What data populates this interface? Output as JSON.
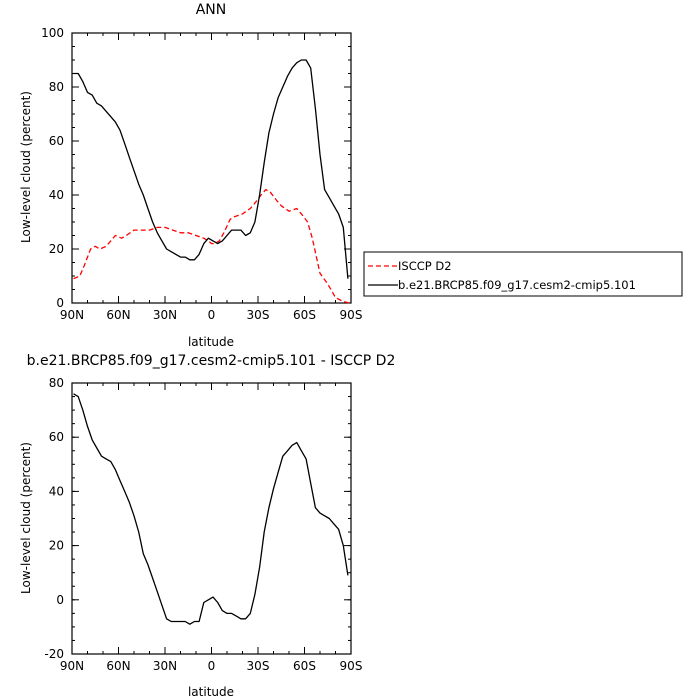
{
  "chart_data": [
    {
      "type": "line",
      "title": "ANN",
      "xlabel": "latitude",
      "ylabel": "Low-level cloud (percent)",
      "xlim": [
        90,
        -90
      ],
      "ylim": [
        0,
        100
      ],
      "yticks": [
        0,
        20,
        40,
        60,
        80,
        100
      ],
      "xticks": [
        90,
        60,
        30,
        0,
        -30,
        -60,
        -90
      ],
      "xtick_labels": [
        "90N",
        "60N",
        "30N",
        "0",
        "30S",
        "60S",
        "90S"
      ],
      "legend_position": "right",
      "series": [
        {
          "name": "ISCCP D2",
          "color": "#ff0000",
          "dash": "dashed",
          "x": [
            89,
            85,
            82,
            78,
            75,
            72,
            68,
            65,
            62,
            58,
            55,
            50,
            45,
            40,
            35,
            30,
            25,
            20,
            15,
            10,
            5,
            2,
            0,
            -2,
            -5,
            -8,
            -12,
            -15,
            -20,
            -25,
            -28,
            -32,
            -35,
            -38,
            -42,
            -45,
            -50,
            -55,
            -58,
            -62,
            -65,
            -70,
            -75,
            -80,
            -85,
            -89
          ],
          "y": [
            9,
            10,
            14,
            20,
            21,
            20,
            21,
            23,
            25,
            24,
            25,
            27,
            27,
            27,
            28,
            28,
            27,
            26,
            26,
            25,
            24,
            23,
            22,
            22,
            23,
            26,
            31,
            32,
            33,
            35,
            37,
            40,
            42,
            41,
            38,
            36,
            34,
            35,
            33,
            30,
            24,
            11,
            7,
            2,
            0.5,
            0
          ]
        },
        {
          "name": "b.e21.BRCP85.f09_g17.cesm2-cmip5.101",
          "color": "#000000",
          "dash": "solid",
          "x": [
            89,
            86,
            83,
            80,
            77,
            74,
            71,
            68,
            65,
            62,
            59,
            56,
            53,
            50,
            47,
            44,
            41,
            38,
            35,
            32,
            29,
            26,
            23,
            20,
            17,
            14,
            11,
            8,
            5,
            2,
            -1,
            -4,
            -7,
            -10,
            -13,
            -16,
            -19,
            -22,
            -25,
            -28,
            -31,
            -34,
            -37,
            -40,
            -43,
            -46,
            -49,
            -52,
            -55,
            -58,
            -61,
            -64,
            -67,
            -70,
            -73,
            -76,
            -79,
            -82,
            -85,
            -88
          ],
          "y": [
            85,
            85,
            82,
            78,
            77,
            74,
            73,
            71,
            69,
            67,
            64,
            59,
            54,
            49,
            44,
            40,
            35,
            30,
            26,
            23,
            20,
            19,
            18,
            17,
            17,
            16,
            16,
            18,
            22,
            24,
            23,
            22,
            23,
            25,
            27,
            27,
            27,
            25,
            26,
            30,
            40,
            52,
            63,
            70,
            76,
            80,
            84,
            87,
            89,
            90,
            90,
            87,
            72,
            55,
            42,
            39,
            36,
            33,
            28,
            9
          ]
        }
      ]
    },
    {
      "type": "line",
      "title": "b.e21.BRCP85.f09_g17.cesm2-cmip5.101 - ISCCP D2",
      "xlabel": "latitude",
      "ylabel": "Low-level cloud (percent)",
      "xlim": [
        90,
        -90
      ],
      "ylim": [
        -20,
        80
      ],
      "yticks": [
        -20,
        0,
        20,
        40,
        60,
        80
      ],
      "xticks": [
        90,
        60,
        30,
        0,
        -30,
        -60,
        -90
      ],
      "xtick_labels": [
        "90N",
        "60N",
        "30N",
        "0",
        "30S",
        "60S",
        "90S"
      ],
      "series": [
        {
          "color": "#000000",
          "dash": "solid",
          "x": [
            89,
            86,
            83,
            80,
            77,
            74,
            71,
            68,
            65,
            62,
            59,
            56,
            53,
            50,
            47,
            44,
            41,
            38,
            35,
            32,
            29,
            26,
            23,
            20,
            17,
            14,
            11,
            8,
            5,
            2,
            -1,
            -4,
            -7,
            -10,
            -13,
            -16,
            -19,
            -22,
            -25,
            -28,
            -31,
            -34,
            -37,
            -40,
            -43,
            -46,
            -49,
            -52,
            -55,
            -58,
            -61,
            -64,
            -67,
            -70,
            -73,
            -76,
            -79,
            -82,
            -85,
            -88
          ],
          "y": [
            76,
            75,
            70,
            64,
            59,
            56,
            53,
            52,
            51,
            48,
            44,
            40,
            36,
            31,
            25,
            17,
            13,
            8,
            3,
            -2,
            -7,
            -8,
            -8,
            -8,
            -8,
            -9,
            -8,
            -8,
            -1,
            0,
            1,
            -1,
            -4,
            -5,
            -5,
            -6,
            -7,
            -7,
            -5,
            2,
            12,
            25,
            34,
            41,
            47,
            53,
            55,
            57,
            58,
            55,
            52,
            43,
            34,
            32,
            31,
            30,
            28,
            26,
            20,
            9
          ]
        }
      ]
    }
  ]
}
